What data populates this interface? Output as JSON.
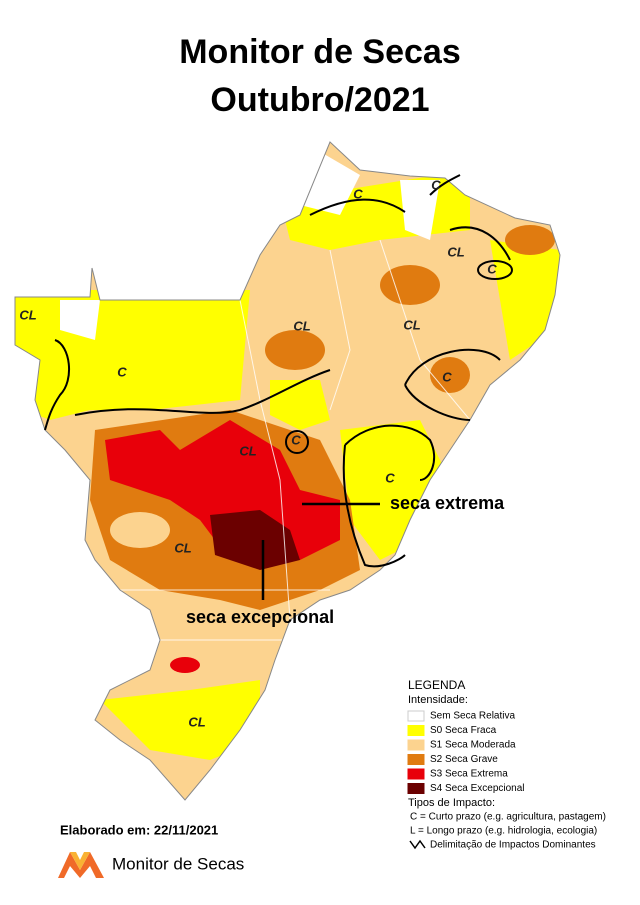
{
  "title": [
    "Monitor de Secas",
    "Outubro/2021"
  ],
  "annotations": [
    "seca extrema",
    "seca excepcional"
  ],
  "map_labels": [
    "C",
    "C",
    "CL",
    "C",
    "CL",
    "CL",
    "CL",
    "C",
    "C",
    "CL",
    "C",
    "C",
    "CL",
    "CL"
  ],
  "legend": {
    "heading": "LEGENDA",
    "intensity_heading": "Intensidade:",
    "items": [
      {
        "label": "Sem Seca Relativa",
        "color": "#ffffff"
      },
      {
        "label": "S0 Seca Fraca",
        "color": "#ffff00"
      },
      {
        "label": "S1 Seca Moderada",
        "color": "#fcd38f"
      },
      {
        "label": "S2 Seca Grave",
        "color": "#e07b10"
      },
      {
        "label": "S3 Seca Extrema",
        "color": "#e8000a"
      },
      {
        "label": "S4 Seca Excepcional",
        "color": "#6b0000"
      }
    ],
    "impact_heading": "Tipos de Impacto:",
    "impact_items": [
      "C = Curto prazo (e.g. agricultura, pastagem)",
      "L = Longo prazo (e.g. hidrologia, ecologia)",
      "Delimitação de Impactos Dominantes"
    ]
  },
  "credit": "Elaborado em: 22/11/2021",
  "logo_text": "Monitor de Secas"
}
